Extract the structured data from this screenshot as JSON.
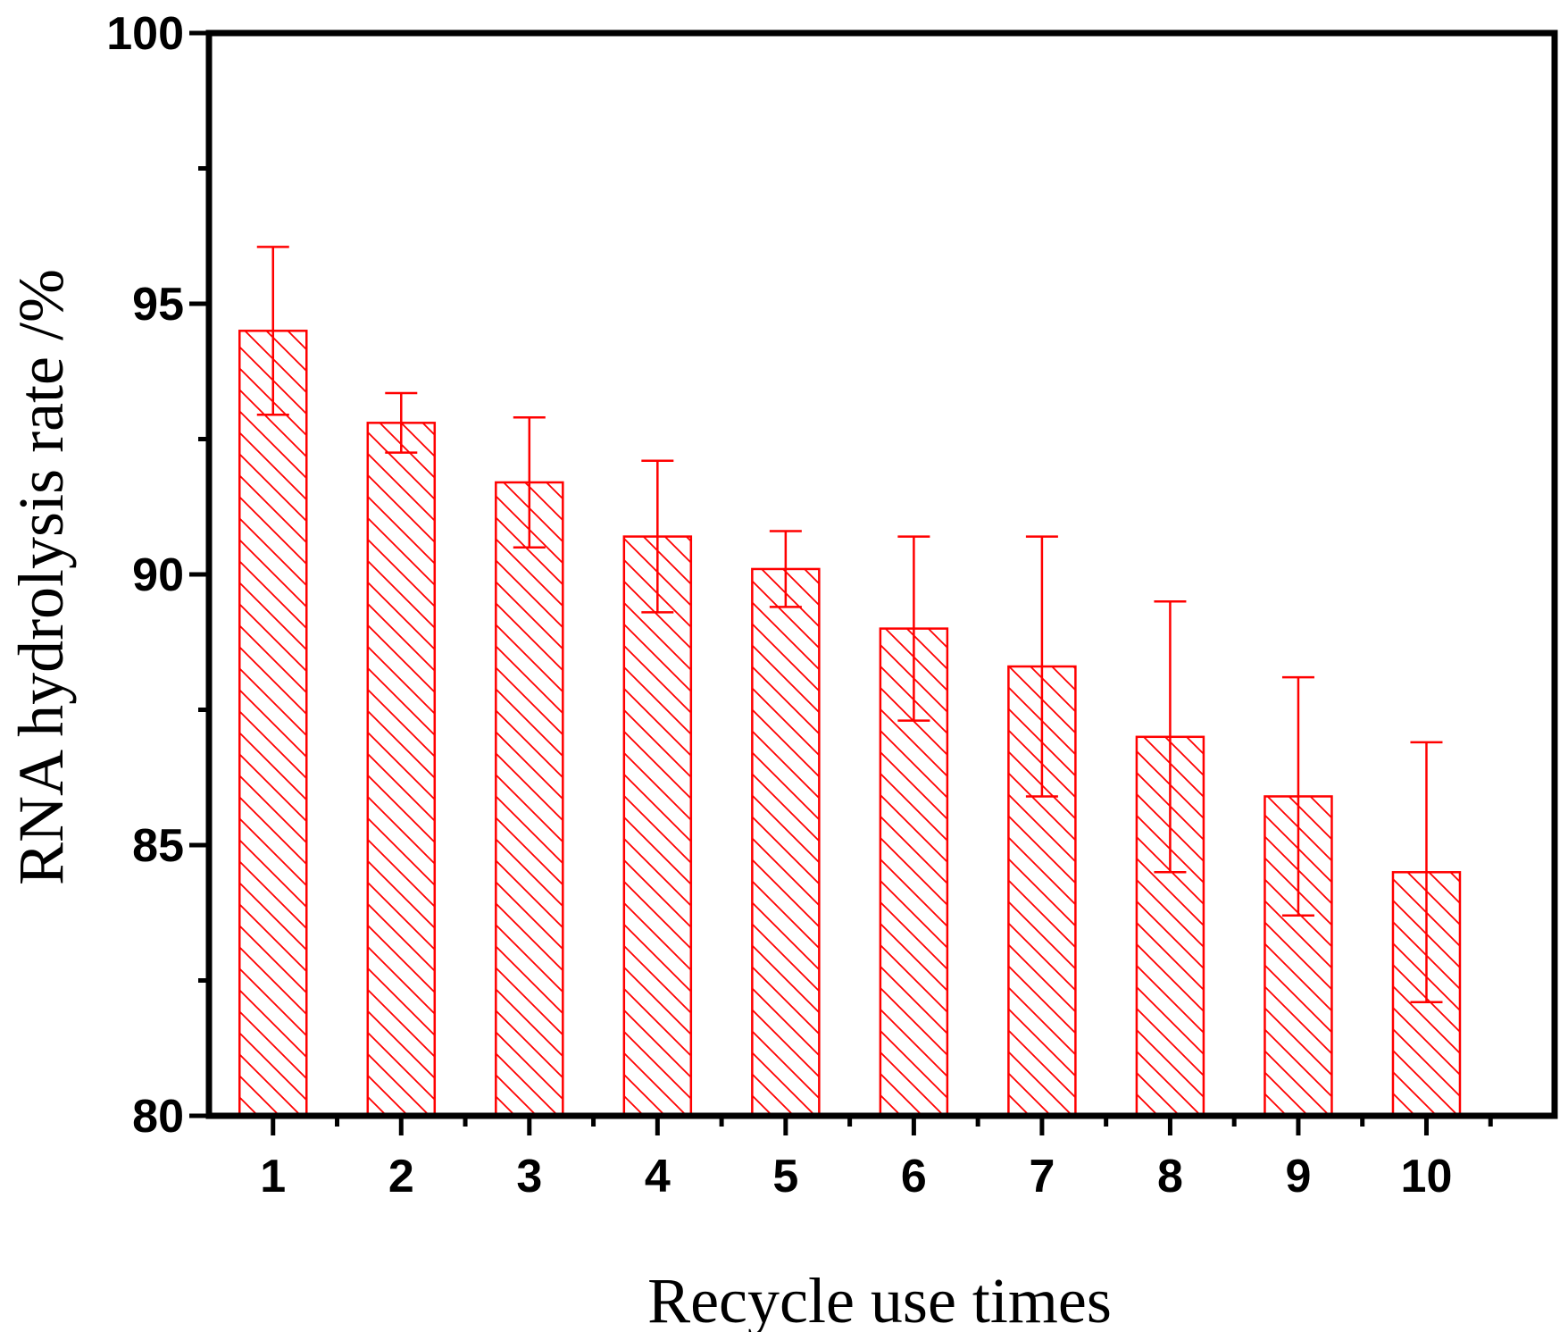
{
  "chart_data": {
    "type": "bar",
    "title": "",
    "xlabel": "Recycle use times",
    "ylabel": "RNA hydrolysis rate /%",
    "categories": [
      "1",
      "2",
      "3",
      "4",
      "5",
      "6",
      "7",
      "8",
      "9",
      "10"
    ],
    "series": [
      {
        "values": [
          94.5,
          92.8,
          91.7,
          90.7,
          90.1,
          89.0,
          88.3,
          87.0,
          85.9,
          84.5
        ],
        "error": [
          1.55,
          0.55,
          1.2,
          1.4,
          0.7,
          1.7,
          2.4,
          2.5,
          2.2,
          2.4
        ]
      }
    ],
    "ylim": [
      80,
      100
    ],
    "yticks": [
      "80",
      "85",
      "90",
      "95",
      "100"
    ],
    "grid": false,
    "bar_style": "hatched outline",
    "colors": {
      "bar": "#ff0000",
      "axis": "#000000",
      "background": "#ffffff"
    }
  }
}
